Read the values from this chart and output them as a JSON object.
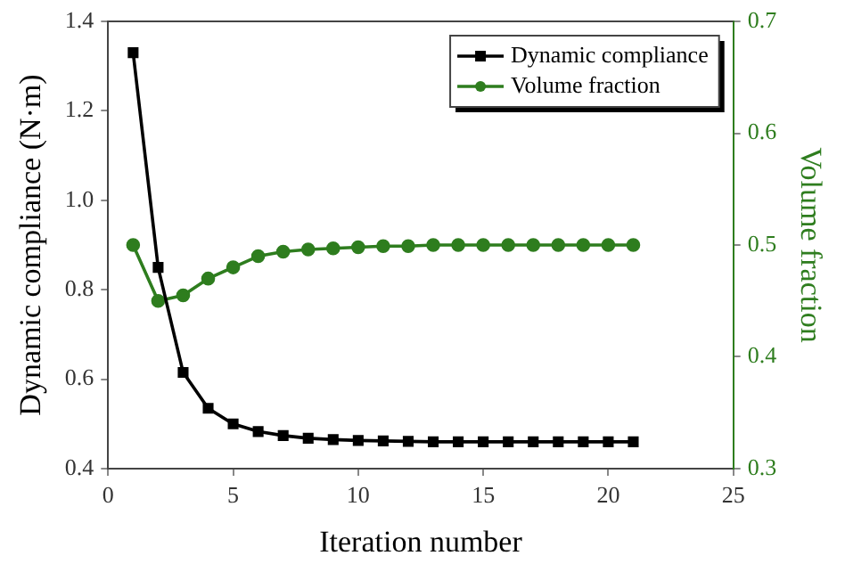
{
  "chart_data": {
    "type": "line",
    "xlabel": "Iteration number",
    "ylabel": "Dynamic compliance (N·m)",
    "y2label": "Volume fraction",
    "x": [
      1,
      2,
      3,
      4,
      5,
      6,
      7,
      8,
      9,
      10,
      11,
      12,
      13,
      14,
      15,
      16,
      17,
      18,
      19,
      20,
      21
    ],
    "series": [
      {
        "name": "Dynamic compliance",
        "color": "#000000",
        "marker": "square",
        "values": [
          1.33,
          0.85,
          0.615,
          0.535,
          0.5,
          0.483,
          0.474,
          0.468,
          0.465,
          0.463,
          0.462,
          0.461,
          0.46,
          0.46,
          0.46,
          0.46,
          0.46,
          0.46,
          0.46,
          0.46,
          0.46
        ]
      },
      {
        "name": "Volume fraction",
        "color": "#2e7d1e",
        "marker": "circle",
        "axis": "y2",
        "values": [
          0.5,
          0.45,
          0.455,
          0.47,
          0.48,
          0.49,
          0.494,
          0.496,
          0.497,
          0.498,
          0.499,
          0.499,
          0.5,
          0.5,
          0.5,
          0.5,
          0.5,
          0.5,
          0.5,
          0.5,
          0.5
        ]
      }
    ],
    "xlim": [
      0,
      25
    ],
    "xticks": [
      0,
      5,
      10,
      15,
      20,
      25
    ],
    "ylim": [
      0.4,
      1.4
    ],
    "yticks": [
      {
        "value": 0.4,
        "label": "0.4"
      },
      {
        "value": 0.6,
        "label": "0.6"
      },
      {
        "value": 0.8,
        "label": "0.8"
      },
      {
        "value": 1.0,
        "label": "1.0"
      },
      {
        "value": 1.2,
        "label": "1.2"
      },
      {
        "value": 1.4,
        "label": "1.4"
      }
    ],
    "y2lim": [
      0.3,
      0.7
    ],
    "y2ticks": [
      0.3,
      0.4,
      0.5,
      0.6,
      0.7
    ],
    "grid": false,
    "legend": "top right",
    "line_style": "solid"
  }
}
